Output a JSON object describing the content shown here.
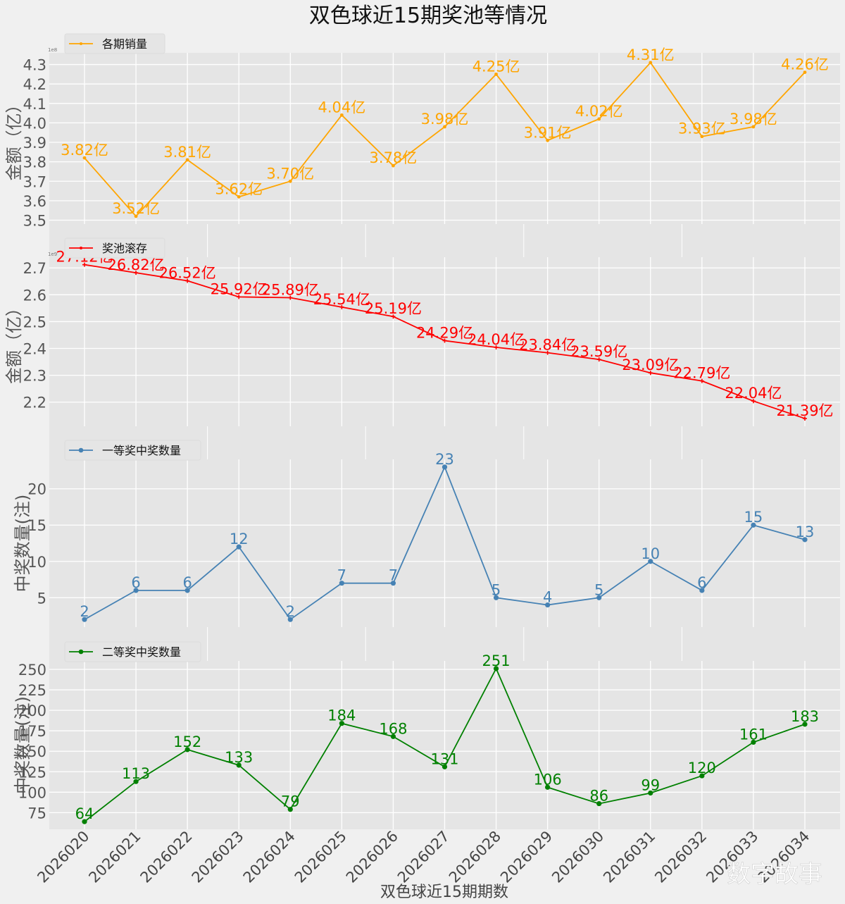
{
  "title": "双色球近15期奖池等情况",
  "xlabel": "双色球近15期期数",
  "watermark": "数字故事",
  "chart_data": [
    {
      "type": "line",
      "id": "sales",
      "legend": "各期销量",
      "legend_position": "top-left",
      "color": "#ffa500",
      "marker": "star",
      "ylabel": "金额（亿）",
      "offset_text": "1e8",
      "yticks": [
        "3.5",
        "3.6",
        "3.7",
        "3.8",
        "3.9",
        "4.0",
        "4.1",
        "4.2",
        "4.3"
      ],
      "ylim": [
        3.48,
        4.36
      ],
      "categories": [
        "2026020",
        "2026021",
        "2026022",
        "2026023",
        "2026024",
        "2026025",
        "2026026",
        "2026027",
        "2026028",
        "2026029",
        "2026030",
        "2026031",
        "2026032",
        "2026033",
        "2026034"
      ],
      "values": [
        3.82,
        3.52,
        3.81,
        3.62,
        3.7,
        4.04,
        3.78,
        3.98,
        4.25,
        3.91,
        4.02,
        4.31,
        3.93,
        3.98,
        4.26
      ],
      "labels": [
        "3.82亿",
        "3.52亿",
        "3.81亿",
        "3.62亿",
        "3.70亿",
        "4.04亿",
        "3.78亿",
        "3.98亿",
        "4.25亿",
        "3.91亿",
        "4.02亿",
        "4.31亿",
        "3.93亿",
        "3.98亿",
        "4.26亿"
      ]
    },
    {
      "type": "line",
      "id": "pool",
      "legend": "奖池滚存",
      "legend_position": "top-left",
      "color": "#ff0000",
      "marker": "plus",
      "ylabel": "金额（亿）",
      "offset_text": "1e9",
      "yticks": [
        "2.2",
        "2.3",
        "2.4",
        "2.5",
        "2.6",
        "2.7"
      ],
      "ylim": [
        2.11,
        2.74
      ],
      "categories": [
        "2026020",
        "2026021",
        "2026022",
        "2026023",
        "2026024",
        "2026025",
        "2026026",
        "2026027",
        "2026028",
        "2026029",
        "2026030",
        "2026031",
        "2026032",
        "2026033",
        "2026034"
      ],
      "values": [
        2.712,
        2.682,
        2.652,
        2.592,
        2.589,
        2.554,
        2.519,
        2.429,
        2.404,
        2.384,
        2.359,
        2.309,
        2.279,
        2.204,
        2.139
      ],
      "labels": [
        "27.12亿",
        "26.82亿",
        "26.52亿",
        "25.92亿",
        "25.89亿",
        "25.54亿",
        "25.19亿",
        "24.29亿",
        "24.04亿",
        "23.84亿",
        "23.59亿",
        "23.09亿",
        "22.79亿",
        "22.04亿",
        "21.39亿"
      ]
    },
    {
      "type": "line",
      "id": "first",
      "legend": "一等奖中奖数量",
      "legend_position": "top-left",
      "color": "#4682b4",
      "marker": "circle",
      "ylabel": "中奖数量(注)",
      "yticks": [
        "5",
        "10",
        "15",
        "20"
      ],
      "ylim": [
        0.95,
        24.05
      ],
      "categories": [
        "2026020",
        "2026021",
        "2026022",
        "2026023",
        "2026024",
        "2026025",
        "2026026",
        "2026027",
        "2026028",
        "2026029",
        "2026030",
        "2026031",
        "2026032",
        "2026033",
        "2026034"
      ],
      "values": [
        2,
        6,
        6,
        12,
        2,
        7,
        7,
        23,
        5,
        4,
        5,
        10,
        6,
        15,
        13
      ],
      "labels": [
        "2",
        "6",
        "6",
        "12",
        "2",
        "7",
        "7",
        "23",
        "5",
        "4",
        "5",
        "10",
        "6",
        "15",
        "13"
      ]
    },
    {
      "type": "line",
      "id": "second",
      "legend": "二等奖中奖数量",
      "legend_position": "top-left",
      "color": "#008000",
      "marker": "circle",
      "ylabel": "中奖数量(注)",
      "yticks": [
        "75",
        "100",
        "125",
        "150",
        "175",
        "200",
        "225",
        "250"
      ],
      "ylim": [
        54.65,
        260.35
      ],
      "categories": [
        "2026020",
        "2026021",
        "2026022",
        "2026023",
        "2026024",
        "2026025",
        "2026026",
        "2026027",
        "2026028",
        "2026029",
        "2026030",
        "2026031",
        "2026032",
        "2026033",
        "2026034"
      ],
      "values": [
        64,
        113,
        152,
        133,
        79,
        184,
        168,
        131,
        251,
        106,
        86,
        99,
        120,
        161,
        183
      ],
      "labels": [
        "64",
        "113",
        "152",
        "133",
        "79",
        "184",
        "168",
        "131",
        "251",
        "106",
        "86",
        "99",
        "120",
        "161",
        "183"
      ]
    }
  ]
}
